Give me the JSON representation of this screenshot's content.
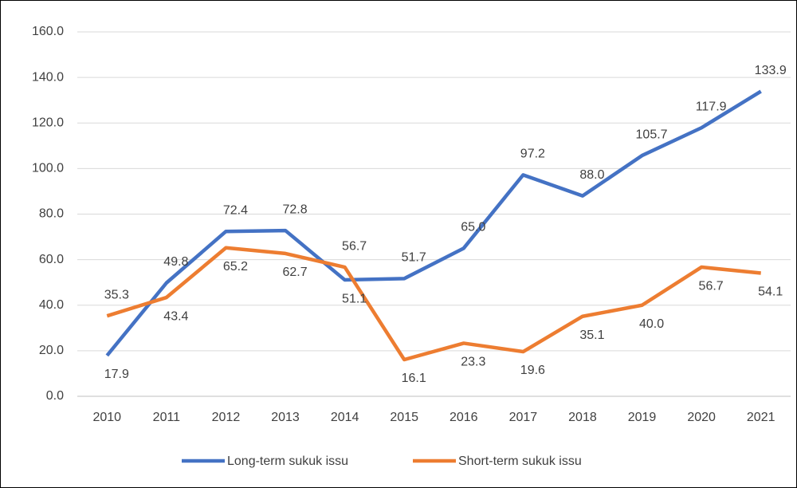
{
  "chart_data": {
    "type": "line",
    "categories": [
      "2010",
      "2011",
      "2012",
      "2013",
      "2014",
      "2015",
      "2016",
      "2017",
      "2018",
      "2019",
      "2020",
      "2021"
    ],
    "series": [
      {
        "name": "Long-term sukuk issu",
        "color": "#4472c4",
        "values": [
          17.9,
          49.8,
          72.4,
          72.8,
          51.1,
          51.7,
          65.0,
          97.2,
          88.0,
          105.7,
          117.9,
          133.9
        ],
        "value_labels": [
          "17.9",
          "49.8",
          "72.4",
          "72.8",
          "51.1",
          "51.7",
          "65.0",
          "97.2",
          "88.0",
          "105.7",
          "117.9",
          "133.9"
        ]
      },
      {
        "name": "Short-term sukuk issu",
        "color": "#ed7d31",
        "values": [
          35.3,
          43.4,
          65.2,
          62.7,
          56.7,
          16.1,
          23.3,
          19.6,
          35.1,
          40.0,
          56.7,
          54.1
        ],
        "value_labels": [
          "35.3",
          "43.4",
          "65.2",
          "62.7",
          "56.7",
          "16.1",
          "23.3",
          "19.6",
          "35.1",
          "40.0",
          "56.7",
          "54.1"
        ]
      }
    ],
    "ylim": [
      0,
      160
    ],
    "yticks": [
      {
        "value": 0,
        "label": "0.0"
      },
      {
        "value": 20,
        "label": "20.0"
      },
      {
        "value": 40,
        "label": "40.0"
      },
      {
        "value": 60,
        "label": "60.0"
      },
      {
        "value": 80,
        "label": "80.0"
      },
      {
        "value": 100,
        "label": "100.0"
      },
      {
        "value": 120,
        "label": "120.0"
      },
      {
        "value": 140,
        "label": "140.0"
      },
      {
        "value": 160,
        "label": "160.0"
      }
    ],
    "grid": true,
    "legend": "bottom"
  }
}
